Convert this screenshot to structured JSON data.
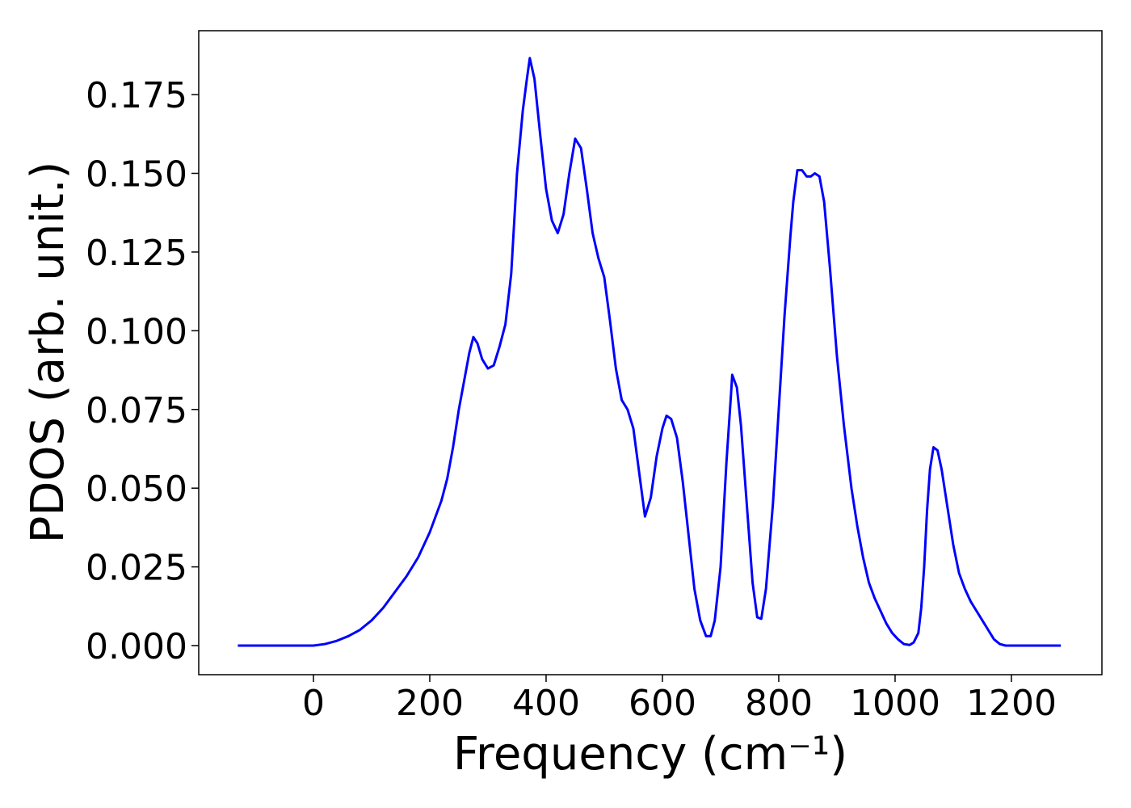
{
  "chart_data": {
    "type": "line",
    "xlabel": "Frequency (cm⁻¹)",
    "ylabel": "PDOS (arb. unit.)",
    "x": [
      -130,
      -60,
      0,
      20,
      40,
      60,
      80,
      100,
      120,
      140,
      160,
      180,
      200,
      220,
      230,
      240,
      250,
      260,
      268,
      275,
      282,
      290,
      300,
      310,
      320,
      330,
      340,
      350,
      360,
      367,
      372,
      380,
      390,
      400,
      410,
      420,
      430,
      440,
      450,
      460,
      470,
      480,
      490,
      500,
      510,
      520,
      530,
      540,
      550,
      560,
      570,
      580,
      590,
      600,
      607,
      615,
      625,
      635,
      645,
      655,
      665,
      675,
      683,
      690,
      700,
      710,
      718,
      720,
      728,
      735,
      745,
      755,
      763,
      770,
      778,
      790,
      800,
      810,
      820,
      825,
      832,
      840,
      848,
      855,
      862,
      870,
      878,
      888,
      900,
      912,
      925,
      935,
      945,
      955,
      965,
      975,
      985,
      995,
      1005,
      1015,
      1025,
      1032,
      1040,
      1045,
      1050,
      1055,
      1060,
      1066,
      1073,
      1080,
      1090,
      1100,
      1110,
      1120,
      1130,
      1140,
      1150,
      1160,
      1170,
      1180,
      1190,
      1285
    ],
    "series": [
      {
        "name": "PDOS",
        "color": "#0000ff",
        "values": [
          0,
          0,
          0,
          0.0005,
          0.0015,
          0.003,
          0.005,
          0.008,
          0.012,
          0.017,
          0.022,
          0.028,
          0.036,
          0.046,
          0.053,
          0.063,
          0.075,
          0.085,
          0.093,
          0.098,
          0.096,
          0.091,
          0.088,
          0.089,
          0.095,
          0.102,
          0.118,
          0.15,
          0.17,
          0.18,
          0.1866,
          0.18,
          0.162,
          0.145,
          0.135,
          0.131,
          0.137,
          0.15,
          0.161,
          0.158,
          0.145,
          0.131,
          0.123,
          0.117,
          0.103,
          0.088,
          0.078,
          0.075,
          0.069,
          0.055,
          0.041,
          0.047,
          0.06,
          0.069,
          0.073,
          0.072,
          0.066,
          0.052,
          0.035,
          0.018,
          0.008,
          0.003,
          0.003,
          0.008,
          0.025,
          0.058,
          0.08,
          0.086,
          0.082,
          0.07,
          0.045,
          0.02,
          0.009,
          0.0085,
          0.018,
          0.045,
          0.075,
          0.105,
          0.13,
          0.141,
          0.151,
          0.151,
          0.149,
          0.149,
          0.15,
          0.149,
          0.141,
          0.12,
          0.092,
          0.07,
          0.05,
          0.038,
          0.028,
          0.02,
          0.015,
          0.011,
          0.007,
          0.004,
          0.002,
          0.0005,
          0.0002,
          0.001,
          0.004,
          0.012,
          0.025,
          0.043,
          0.056,
          0.063,
          0.062,
          0.056,
          0.044,
          0.032,
          0.023,
          0.018,
          0.014,
          0.011,
          0.008,
          0.005,
          0.002,
          0.0005,
          0,
          0
        ]
      }
    ],
    "xlim": [
      -197.2,
      1355.6
    ],
    "ylim": [
      -0.00924,
      0.1953
    ],
    "xticks": [
      0,
      200,
      400,
      600,
      800,
      1000,
      1200
    ],
    "yticks": [
      {
        "value": 0,
        "label": "0.000"
      },
      {
        "value": 0.025,
        "label": "0.025"
      },
      {
        "value": 0.05,
        "label": "0.050"
      },
      {
        "value": 0.075,
        "label": "0.075"
      },
      {
        "value": 0.1,
        "label": "0.100"
      },
      {
        "value": 0.125,
        "label": "0.125"
      },
      {
        "value": 0.15,
        "label": "0.150"
      },
      {
        "value": 0.175,
        "label": "0.175"
      }
    ],
    "grid": false
  }
}
